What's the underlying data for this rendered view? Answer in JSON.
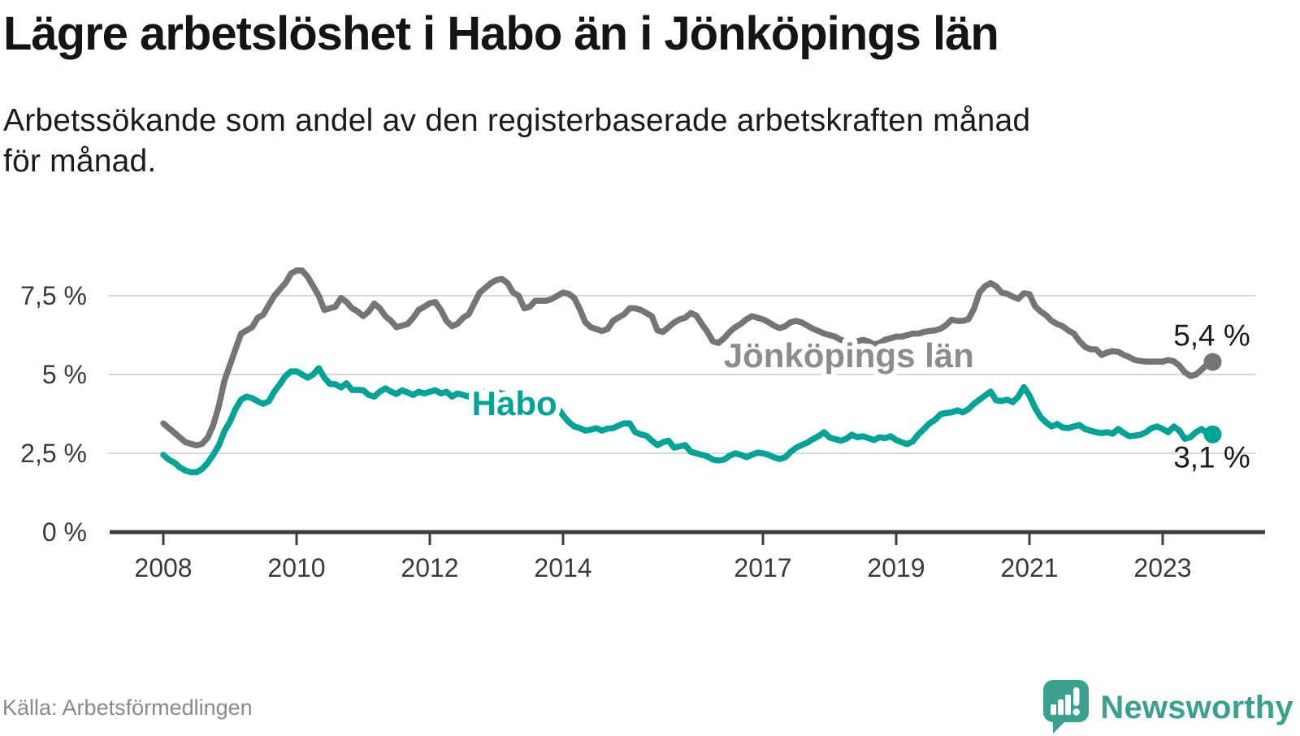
{
  "header": {
    "title": "Lägre arbetslöshet i Habo än i Jönköpings län",
    "subtitle_lines": [
      "Arbetssökande som andel av den registerbaserade arbetskraften månad",
      "för månad."
    ]
  },
  "footer": {
    "source": "Källa: Arbetsförmedlingen",
    "brand": "Newsworthy"
  },
  "colors": {
    "habo": "#00a396",
    "county": "#757575",
    "county_label": "#8c8c8c",
    "grid": "#d9d9d9",
    "axis": "#3c3c3c",
    "tick_text": "#3a3a3a",
    "value_text": "#1a1a1a",
    "brand_teal": "#3aa18e"
  },
  "chart_data": {
    "type": "line",
    "unit": "%",
    "frequency": "monthly",
    "x_range": {
      "start_year": 2008,
      "start_month": 1,
      "end_year": 2023,
      "end_month": 10
    },
    "x_ticks": [
      2008,
      2010,
      2012,
      2014,
      2017,
      2019,
      2021,
      2023
    ],
    "y_ticks": [
      {
        "value": 0,
        "label": "0 %"
      },
      {
        "value": 2.5,
        "label": "2,5 %"
      },
      {
        "value": 5,
        "label": "5 %"
      },
      {
        "value": 7.5,
        "label": "7,5 %"
      }
    ],
    "ylim": [
      0,
      8.8
    ],
    "grid": true,
    "series": [
      {
        "name": "Jönköpings län",
        "end_label": "5,4 %",
        "end_value": 5.4,
        "label_anchor": {
          "year": 2018.29,
          "value": 5.62
        },
        "end_label_dy": -20,
        "values": [
          3.45,
          3.3,
          3.15,
          3.0,
          2.85,
          2.8,
          2.75,
          2.8,
          3.0,
          3.4,
          4.0,
          4.8,
          5.3,
          5.8,
          6.3,
          6.4,
          6.5,
          6.8,
          6.9,
          7.2,
          7.5,
          7.7,
          7.9,
          8.2,
          8.3,
          8.3,
          8.1,
          7.8,
          7.5,
          7.05,
          7.1,
          7.15,
          7.43,
          7.3,
          7.1,
          7.0,
          6.85,
          7.0,
          7.25,
          7.1,
          6.85,
          6.7,
          6.5,
          6.55,
          6.6,
          6.8,
          7.05,
          7.15,
          7.26,
          7.3,
          7.04,
          6.7,
          6.53,
          6.61,
          6.8,
          6.91,
          7.26,
          7.6,
          7.75,
          7.9,
          8.0,
          8.03,
          7.9,
          7.6,
          7.5,
          7.1,
          7.15,
          7.34,
          7.34,
          7.34,
          7.4,
          7.5,
          7.6,
          7.56,
          7.43,
          7.08,
          6.66,
          6.5,
          6.44,
          6.38,
          6.44,
          6.7,
          6.81,
          6.91,
          7.1,
          7.1,
          7.05,
          6.95,
          6.85,
          6.4,
          6.35,
          6.5,
          6.65,
          6.75,
          6.8,
          6.95,
          6.87,
          6.6,
          6.35,
          6.05,
          6.0,
          6.15,
          6.35,
          6.5,
          6.6,
          6.75,
          6.85,
          6.8,
          6.75,
          6.66,
          6.55,
          6.47,
          6.53,
          6.66,
          6.7,
          6.65,
          6.55,
          6.45,
          6.38,
          6.3,
          6.25,
          6.2,
          6.1,
          6.05,
          6.0,
          6.05,
          6.1,
          6.05,
          5.95,
          6.0,
          6.1,
          6.15,
          6.2,
          6.2,
          6.25,
          6.3,
          6.3,
          6.35,
          6.38,
          6.4,
          6.45,
          6.57,
          6.74,
          6.7,
          6.7,
          6.75,
          7.08,
          7.6,
          7.8,
          7.9,
          7.8,
          7.6,
          7.56,
          7.47,
          7.4,
          7.58,
          7.55,
          7.17,
          7.0,
          6.88,
          6.7,
          6.6,
          6.53,
          6.4,
          6.3,
          6.06,
          5.88,
          5.8,
          5.8,
          5.62,
          5.7,
          5.74,
          5.72,
          5.62,
          5.55,
          5.46,
          5.43,
          5.41,
          5.41,
          5.41,
          5.41,
          5.46,
          5.42,
          5.28,
          5.07,
          4.95,
          5.0,
          5.15,
          5.32,
          5.4
        ]
      },
      {
        "name": "Habo",
        "end_label": "3,1 %",
        "end_value": 3.1,
        "label_anchor": {
          "year": 2013.27,
          "value": 4.1
        },
        "end_label_dy": 41,
        "values": [
          2.45,
          2.3,
          2.2,
          2.05,
          1.95,
          1.9,
          1.9,
          2.0,
          2.2,
          2.45,
          2.75,
          3.2,
          3.5,
          3.9,
          4.2,
          4.3,
          4.25,
          4.15,
          4.07,
          4.15,
          4.46,
          4.69,
          4.95,
          5.1,
          5.1,
          5.0,
          4.9,
          5.0,
          5.2,
          4.9,
          4.7,
          4.69,
          4.59,
          4.72,
          4.51,
          4.51,
          4.5,
          4.35,
          4.3,
          4.46,
          4.56,
          4.46,
          4.38,
          4.5,
          4.43,
          4.35,
          4.45,
          4.4,
          4.45,
          4.5,
          4.4,
          4.45,
          4.3,
          4.4,
          4.35,
          4.3,
          4.45,
          4.5,
          4.4,
          4.45,
          4.45,
          4.4,
          4.35,
          4.3,
          4.25,
          4.2,
          4.15,
          4.1,
          4.05,
          4.0,
          4.1,
          3.95,
          3.7,
          3.5,
          3.35,
          3.3,
          3.22,
          3.25,
          3.3,
          3.22,
          3.28,
          3.3,
          3.38,
          3.45,
          3.45,
          3.17,
          3.1,
          3.06,
          2.9,
          2.76,
          2.85,
          2.9,
          2.68,
          2.72,
          2.76,
          2.55,
          2.5,
          2.45,
          2.4,
          2.3,
          2.27,
          2.3,
          2.42,
          2.5,
          2.45,
          2.38,
          2.45,
          2.52,
          2.5,
          2.45,
          2.37,
          2.32,
          2.37,
          2.55,
          2.68,
          2.76,
          2.84,
          2.95,
          3.04,
          3.17,
          3.0,
          2.95,
          2.9,
          2.96,
          3.09,
          3.01,
          3.04,
          2.98,
          2.92,
          3.01,
          2.98,
          3.04,
          2.92,
          2.85,
          2.79,
          2.88,
          3.1,
          3.27,
          3.45,
          3.56,
          3.74,
          3.78,
          3.8,
          3.86,
          3.8,
          3.9,
          4.07,
          4.2,
          4.33,
          4.46,
          4.18,
          4.16,
          4.2,
          4.12,
          4.3,
          4.6,
          4.33,
          3.95,
          3.65,
          3.48,
          3.35,
          3.43,
          3.32,
          3.3,
          3.35,
          3.4,
          3.27,
          3.22,
          3.17,
          3.14,
          3.17,
          3.12,
          3.27,
          3.14,
          3.04,
          3.06,
          3.09,
          3.17,
          3.3,
          3.35,
          3.27,
          3.17,
          3.35,
          3.22,
          2.96,
          3.01,
          3.17,
          3.27,
          3.14,
          3.1
        ]
      }
    ]
  }
}
